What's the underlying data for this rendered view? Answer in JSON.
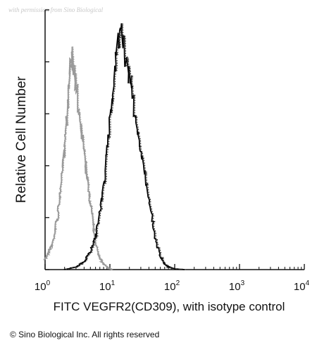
{
  "chart_data": {
    "type": "line",
    "watermark": "with permission from Sino Biological",
    "ylabel": "Relative Cell Number",
    "xlabel": "FITC VEGFR2(CD309), with isotype control",
    "x_scale": "log",
    "xlim": [
      1,
      10000
    ],
    "ylim": [
      0,
      100
    ],
    "x_ticks": [
      {
        "value": 1,
        "base": "10",
        "exp": "0"
      },
      {
        "value": 10,
        "base": "10",
        "exp": "1"
      },
      {
        "value": 100,
        "base": "10",
        "exp": "2"
      },
      {
        "value": 1000,
        "base": "10",
        "exp": "3"
      },
      {
        "value": 10000,
        "base": "10",
        "exp": "4"
      }
    ],
    "grid": false,
    "series": [
      {
        "color": "#9a9a9a",
        "style": "dotted",
        "x": [
          1.0,
          1.3,
          1.6,
          1.9,
          2.2,
          2.5,
          2.8,
          3.2,
          3.7,
          4.3,
          5.0,
          5.8,
          6.6,
          7.5,
          8.5,
          9.6,
          11
        ],
        "y": [
          4,
          10,
          22,
          42,
          62,
          82,
          78,
          65,
          52,
          38,
          25,
          13,
          6,
          3,
          1.5,
          0.5,
          0
        ]
      },
      {
        "color": "#000000",
        "style": "solid",
        "x": [
          2.0,
          3.0,
          4.0,
          5.0,
          6.0,
          7.0,
          8.0,
          9.0,
          10,
          11,
          12.5,
          14,
          16,
          18,
          20,
          23,
          26,
          30,
          35,
          40,
          46,
          52,
          60,
          70,
          80,
          100,
          140
        ],
        "y": [
          0,
          1,
          3,
          7,
          13,
          22,
          32,
          44,
          58,
          70,
          82,
          92,
          88,
          80,
          75,
          64,
          55,
          46,
          36,
          27,
          18,
          10,
          5,
          2,
          1,
          0.3,
          0
        ]
      }
    ]
  },
  "footer": {
    "copyright": "© Sino Biological Inc. All rights reserved"
  }
}
